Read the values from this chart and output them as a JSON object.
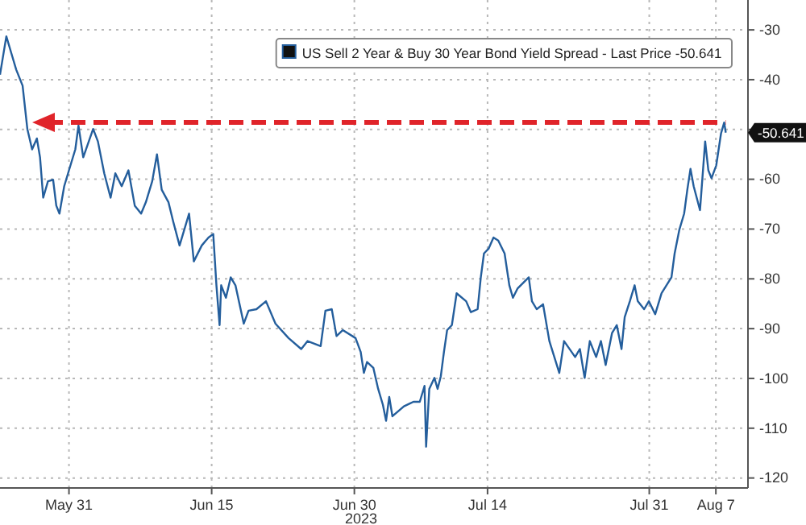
{
  "chart_data": {
    "type": "line",
    "xlabel": "2023",
    "x": [
      "2023-05-23T18:00",
      "2023-05-24T10:00",
      "2023-05-24T23:00",
      "2023-05-25T11:00",
      "2023-05-26T03:00",
      "2023-05-26T15:00",
      "2023-05-27T03:00",
      "2023-05-27T15:00",
      "2023-05-27T23:00",
      "2023-05-28T07:00",
      "2023-05-28T19:00",
      "2023-05-29T08:00",
      "2023-05-29T16:00",
      "2023-05-30T00:00",
      "2023-05-30T12:00",
      "2023-05-31T00:00",
      "2023-05-31T16:00",
      "2023-06-01T00:00",
      "2023-06-01T12:00",
      "2023-06-02T13:00",
      "2023-06-03T01:00",
      "2023-06-03T17:00",
      "2023-06-04T09:00",
      "2023-06-04T21:00",
      "2023-06-05T13:00",
      "2023-06-06T06:00",
      "2023-06-06T22:00",
      "2023-06-07T14:00",
      "2023-06-08T02:00",
      "2023-06-08T18:00",
      "2023-06-09T06:00",
      "2023-06-09T18:00",
      "2023-06-10T11:00",
      "2023-06-10T23:00",
      "2023-06-11T15:00",
      "2023-06-12T03:00",
      "2023-06-12T15:00",
      "2023-06-13T03:00",
      "2023-06-13T23:00",
      "2023-06-14T16:00",
      "2023-06-15T04:00",
      "2023-06-15T12:00",
      "2023-06-15T20:00",
      "2023-06-16T00:00",
      "2023-06-16T12:00",
      "2023-06-17T00:00",
      "2023-06-17T12:00",
      "2023-06-18T09:00",
      "2023-06-18T21:00",
      "2023-06-19T17:00",
      "2023-06-20T17:00",
      "2023-06-21T17:00",
      "2023-06-23T02:00",
      "2023-06-24T10:00",
      "2023-06-25T02:00",
      "2023-06-26T11:00",
      "2023-06-26T23:00",
      "2023-06-27T15:00",
      "2023-06-28T03:00",
      "2023-06-28T19:00",
      "2023-06-30T03:00",
      "2023-06-30T16:00",
      "2023-07-01T00:00",
      "2023-07-01T08:00",
      "2023-07-02T00:00",
      "2023-07-02T12:00",
      "2023-07-03T00:00",
      "2023-07-03T08:00",
      "2023-07-03T16:00",
      "2023-07-04T00:00",
      "2023-07-05T05:00",
      "2023-07-06T05:00",
      "2023-07-06T21:00",
      "2023-07-07T09:00",
      "2023-07-07T13:00",
      "2023-07-07T21:00",
      "2023-07-08T10:00",
      "2023-07-08T18:00",
      "2023-07-09T02:00",
      "2023-07-09T10:00",
      "2023-07-09T18:00",
      "2023-07-10T06:00",
      "2023-07-10T18:00",
      "2023-07-11T18:00",
      "2023-07-12T06:00",
      "2023-07-12T23:00",
      "2023-07-13T07:00",
      "2023-07-13T15:00",
      "2023-07-14T03:00",
      "2023-07-14T15:00",
      "2023-07-15T03:00",
      "2023-07-15T19:00",
      "2023-07-16T07:00",
      "2023-07-16T16:00",
      "2023-07-17T04:00",
      "2023-07-18T08:00",
      "2023-07-18T16:00",
      "2023-07-19T04:00",
      "2023-07-19T20:00",
      "2023-07-20T12:00",
      "2023-07-21T13:00",
      "2023-07-22T01:00",
      "2023-07-23T05:00",
      "2023-07-23T17:00",
      "2023-07-24T05:00",
      "2023-07-24T18:00",
      "2023-07-25T10:00",
      "2023-07-25T22:00",
      "2023-07-26T10:00",
      "2023-07-27T02:00",
      "2023-07-27T14:00",
      "2023-07-28T02:00",
      "2023-07-28T10:00",
      "2023-07-28T23:00",
      "2023-07-29T11:00",
      "2023-07-29T19:00",
      "2023-07-30T11:00",
      "2023-07-30T23:00",
      "2023-07-31T15:00",
      "2023-08-01T07:00",
      "2023-08-02T08:00",
      "2023-08-02T16:00",
      "2023-08-03T04:00",
      "2023-08-03T16:00",
      "2023-08-04T00:00",
      "2023-08-04T08:00",
      "2023-08-04T16:00",
      "2023-08-05T08:00",
      "2023-08-05T21:00",
      "2023-08-06T05:00",
      "2023-08-06T13:00",
      "2023-08-07T01:00",
      "2023-08-07T13:00",
      "2023-08-07T21:00",
      "2023-08-08T01:00"
    ],
    "series": [
      {
        "name": "US Sell 2 Year & Buy 30 Year Bond Yield Spread - Last Price -50.641",
        "color": "#245e9c",
        "values": [
          -39.0,
          -31.3,
          -34.8,
          -38.0,
          -41.2,
          -49.9,
          -54.0,
          -51.8,
          -55.6,
          -63.7,
          -60.4,
          -60.1,
          -65.3,
          -66.9,
          -61.4,
          -58.2,
          -54.0,
          -49.2,
          -55.6,
          -49.9,
          -52.4,
          -58.8,
          -63.7,
          -58.8,
          -61.4,
          -58.2,
          -65.3,
          -66.9,
          -64.6,
          -60.4,
          -55.0,
          -62.1,
          -64.6,
          -68.5,
          -73.3,
          -70.1,
          -66.9,
          -76.5,
          -73.3,
          -71.7,
          -71.0,
          -81.3,
          -89.3,
          -81.3,
          -83.8,
          -79.7,
          -81.3,
          -89.0,
          -86.4,
          -86.1,
          -84.5,
          -89.0,
          -91.9,
          -94.1,
          -92.5,
          -93.5,
          -86.4,
          -86.1,
          -91.5,
          -90.3,
          -91.9,
          -94.7,
          -98.9,
          -96.7,
          -97.9,
          -102.1,
          -105.3,
          -108.5,
          -103.7,
          -107.6,
          -105.6,
          -104.7,
          -104.7,
          -101.5,
          -113.7,
          -102.1,
          -99.9,
          -102.1,
          -99.6,
          -94.7,
          -90.3,
          -89.3,
          -82.9,
          -84.5,
          -86.7,
          -86.1,
          -79.7,
          -74.9,
          -73.9,
          -71.7,
          -72.3,
          -74.9,
          -81.3,
          -83.8,
          -81.9,
          -79.7,
          -84.5,
          -86.1,
          -85.1,
          -92.5,
          -98.9,
          -92.5,
          -95.7,
          -94.1,
          -99.9,
          -92.5,
          -95.7,
          -92.5,
          -97.3,
          -90.9,
          -89.3,
          -94.1,
          -87.7,
          -84.5,
          -81.3,
          -84.5,
          -86.1,
          -84.5,
          -87.1,
          -82.9,
          -79.7,
          -74.9,
          -70.1,
          -66.9,
          -62.1,
          -57.9,
          -61.4,
          -66.2,
          -52.4,
          -58.2,
          -59.8,
          -57.2,
          -50.8,
          -48.6,
          -50.641
        ]
      }
    ],
    "xlim": [
      "2023-05-23T18:00",
      "2023-08-10T09:00"
    ],
    "xticks": [
      {
        "value": "2023-05-31",
        "label": "May 31"
      },
      {
        "value": "2023-06-15",
        "label": "Jun 15"
      },
      {
        "value": "2023-06-30",
        "label": "Jun 30"
      },
      {
        "value": "2023-07-14",
        "label": "Jul 14"
      },
      {
        "value": "2023-07-31",
        "label": "Jul 31"
      },
      {
        "value": "2023-08-07",
        "label": "Aug 7"
      }
    ],
    "ylim": [
      -122,
      -24
    ],
    "yticks": [
      -30,
      -40,
      {
        "value": -50,
        "label": null
      },
      -60,
      -70,
      -80,
      -90,
      -100,
      -110,
      -120
    ],
    "ref_lines": [
      {
        "axis": "y",
        "value": -48.6,
        "color": "#e0242a",
        "line_style": "dashed"
      }
    ],
    "annotations": [
      {
        "text": "-50.641",
        "x": "2023-08-08T01:00",
        "y": -50.641
      }
    ],
    "grid": true,
    "legend": "top right"
  }
}
